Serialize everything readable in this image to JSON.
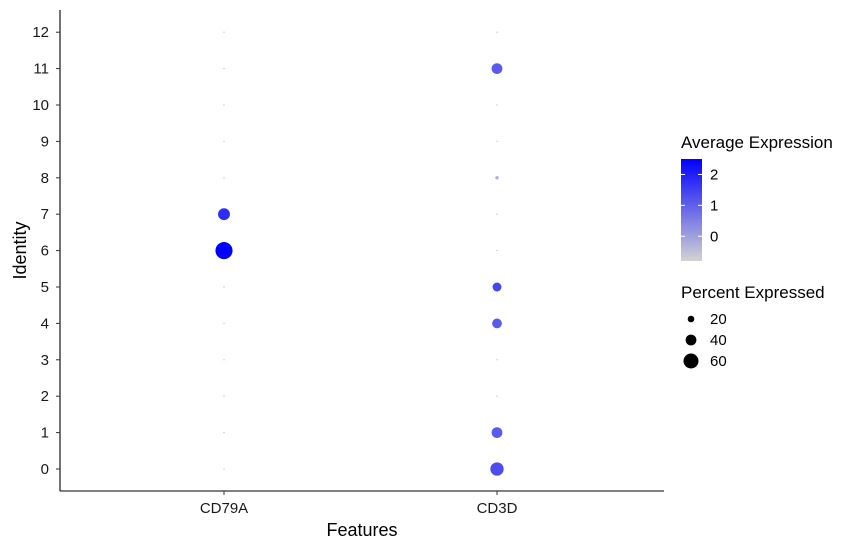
{
  "chart_data": {
    "type": "dot",
    "title": "",
    "xlabel": "Features",
    "ylabel": "Identity",
    "features": [
      "CD79A",
      "CD3D"
    ],
    "identities": [
      "0",
      "1",
      "2",
      "3",
      "4",
      "5",
      "6",
      "7",
      "8",
      "9",
      "10",
      "11",
      "12"
    ],
    "points": [
      {
        "feature": "CD79A",
        "identity": "0",
        "pct": 0,
        "avg": -0.6
      },
      {
        "feature": "CD79A",
        "identity": "1",
        "pct": 0,
        "avg": -0.6
      },
      {
        "feature": "CD79A",
        "identity": "2",
        "pct": 0,
        "avg": -0.6
      },
      {
        "feature": "CD79A",
        "identity": "3",
        "pct": 0,
        "avg": -0.6
      },
      {
        "feature": "CD79A",
        "identity": "4",
        "pct": 0,
        "avg": -0.6
      },
      {
        "feature": "CD79A",
        "identity": "5",
        "pct": 0,
        "avg": -0.6
      },
      {
        "feature": "CD79A",
        "identity": "6",
        "pct": 70,
        "avg": 2.5
      },
      {
        "feature": "CD79A",
        "identity": "7",
        "pct": 45,
        "avg": 1.8
      },
      {
        "feature": "CD79A",
        "identity": "8",
        "pct": 0,
        "avg": -0.6
      },
      {
        "feature": "CD79A",
        "identity": "9",
        "pct": 0,
        "avg": -0.6
      },
      {
        "feature": "CD79A",
        "identity": "10",
        "pct": 0,
        "avg": -0.6
      },
      {
        "feature": "CD79A",
        "identity": "11",
        "pct": 0,
        "avg": -0.6
      },
      {
        "feature": "CD79A",
        "identity": "12",
        "pct": 0,
        "avg": -0.6
      },
      {
        "feature": "CD3D",
        "identity": "0",
        "pct": 52,
        "avg": 1.3
      },
      {
        "feature": "CD3D",
        "identity": "1",
        "pct": 40,
        "avg": 1.1
      },
      {
        "feature": "CD3D",
        "identity": "2",
        "pct": 0,
        "avg": -0.6
      },
      {
        "feature": "CD3D",
        "identity": "3",
        "pct": 0,
        "avg": -0.6
      },
      {
        "feature": "CD3D",
        "identity": "4",
        "pct": 35,
        "avg": 1.1
      },
      {
        "feature": "CD3D",
        "identity": "5",
        "pct": 31,
        "avg": 1.4
      },
      {
        "feature": "CD3D",
        "identity": "6",
        "pct": 0,
        "avg": -0.6
      },
      {
        "feature": "CD3D",
        "identity": "7",
        "pct": 0,
        "avg": -0.6
      },
      {
        "feature": "CD3D",
        "identity": "8",
        "pct": 5,
        "avg": -0.2
      },
      {
        "feature": "CD3D",
        "identity": "9",
        "pct": 0,
        "avg": -0.6
      },
      {
        "feature": "CD3D",
        "identity": "10",
        "pct": 0,
        "avg": -0.6
      },
      {
        "feature": "CD3D",
        "identity": "11",
        "pct": 40,
        "avg": 1.1
      },
      {
        "feature": "CD3D",
        "identity": "12",
        "pct": 0,
        "avg": -0.6
      }
    ],
    "color_legend": {
      "title": "Average Expression",
      "ticks": [
        2,
        1,
        0
      ],
      "range": [
        -0.8,
        2.5
      ],
      "low_color": "#d3d3d3",
      "high_color": "#0000ff"
    },
    "size_legend": {
      "title": "Percent Expressed",
      "values": [
        20,
        40,
        60
      ]
    },
    "grid": false,
    "legend_position": "right"
  }
}
